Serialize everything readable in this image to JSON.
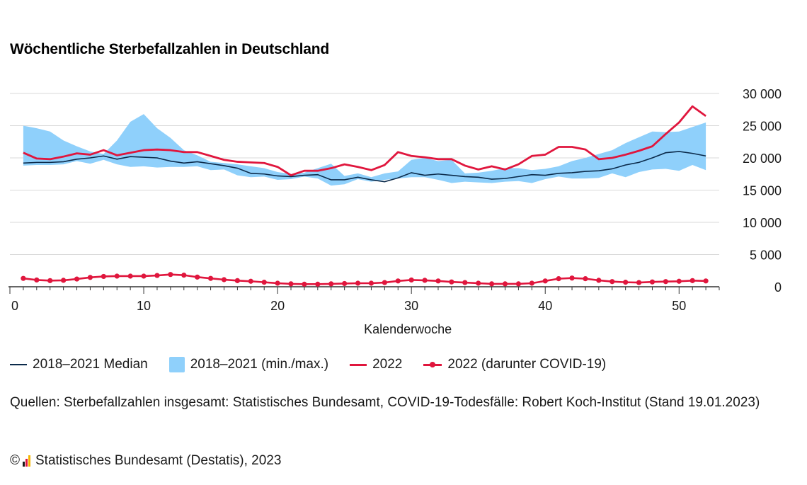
{
  "title": "Wöchentliche Sterbefallzahlen in Deutschland",
  "legend": {
    "median": "2018–2021 Median",
    "range": "2018–2021 (min./max.)",
    "y2022": "2022",
    "covid": "2022 (darunter COVID-19)"
  },
  "source": "Quellen: Sterbefallzahlen insgesamt: Statistisches Bundesamt, COVID-19-Todesfälle: Robert Koch-Institut (Stand 19.01.2023)",
  "copyright": {
    "symbol": "©",
    "text": "Statistisches Bundesamt (Destatis), 2023"
  },
  "colors": {
    "median": "#0b2a4a",
    "range": "#8fd0fb",
    "y2022": "#e0163d",
    "covid": "#e0163d",
    "grid": "#d9d9d9",
    "axis": "#333333"
  },
  "chart_data": {
    "type": "line",
    "xlabel": "Kalenderwoche",
    "ylabel": "",
    "xlim": [
      0,
      53
    ],
    "ylim": [
      0,
      30000
    ],
    "x_ticks": [
      0,
      10,
      20,
      30,
      40,
      50
    ],
    "x_tick_labels": [
      "0",
      "10",
      "20",
      "30",
      "40",
      "50"
    ],
    "y_ticks": [
      0,
      5000,
      10000,
      15000,
      20000,
      25000,
      30000
    ],
    "y_tick_labels": [
      "0",
      "5 000",
      "10 000",
      "15 000",
      "20 000",
      "25 000",
      "30 000"
    ],
    "y_axis_position": "right",
    "grid": true,
    "legend_position": "bottom",
    "x": [
      1,
      2,
      3,
      4,
      5,
      6,
      7,
      8,
      9,
      10,
      11,
      12,
      13,
      14,
      15,
      16,
      17,
      18,
      19,
      20,
      21,
      22,
      23,
      24,
      25,
      26,
      27,
      28,
      29,
      30,
      31,
      32,
      33,
      34,
      35,
      36,
      37,
      38,
      39,
      40,
      41,
      42,
      43,
      44,
      45,
      46,
      47,
      48,
      49,
      50,
      51,
      52
    ],
    "series": [
      {
        "name": "2018–2021 (min./max.)",
        "type": "area-range",
        "max": [
          25000,
          24600,
          24100,
          22700,
          21800,
          21000,
          20600,
          22700,
          25600,
          26800,
          24600,
          23100,
          21200,
          20400,
          19400,
          19200,
          19000,
          18700,
          18400,
          17800,
          17500,
          17700,
          18400,
          19100,
          17200,
          17600,
          17000,
          17600,
          17900,
          19700,
          20000,
          19500,
          19700,
          17600,
          17700,
          18000,
          18400,
          18400,
          18100,
          18300,
          18700,
          19500,
          20000,
          20600,
          21200,
          22300,
          23200,
          24100,
          24000,
          24100,
          24800,
          25500
        ],
        "min": [
          18800,
          18900,
          18900,
          19000,
          19500,
          19100,
          19700,
          19000,
          18600,
          18700,
          18500,
          18600,
          18600,
          18700,
          18100,
          18200,
          17300,
          17000,
          17100,
          16600,
          16700,
          17100,
          16800,
          15700,
          15900,
          16700,
          16300,
          16600,
          16800,
          17000,
          17000,
          16600,
          16100,
          16300,
          16200,
          16100,
          16300,
          16400,
          16100,
          16700,
          17100,
          16800,
          16800,
          16900,
          17600,
          17000,
          17800,
          18200,
          18300,
          18000,
          18900,
          18100
        ]
      },
      {
        "name": "2018–2021 Median",
        "values": [
          19200,
          19300,
          19300,
          19400,
          19800,
          20000,
          20300,
          19800,
          20200,
          20100,
          20000,
          19500,
          19200,
          19400,
          19100,
          18800,
          18400,
          17600,
          17500,
          17200,
          17100,
          17300,
          17400,
          16600,
          16600,
          17000,
          16600,
          16300,
          16900,
          17700,
          17300,
          17500,
          17300,
          17100,
          17000,
          16700,
          16800,
          17100,
          17400,
          17300,
          17600,
          17700,
          17900,
          18000,
          18300,
          18900,
          19300,
          20000,
          20800,
          21000,
          20700,
          20300
        ]
      },
      {
        "name": "2022",
        "values": [
          20800,
          19900,
          19800,
          20200,
          20700,
          20500,
          21200,
          20400,
          20800,
          21200,
          21300,
          21200,
          20900,
          20900,
          20300,
          19700,
          19400,
          19300,
          19200,
          18600,
          17300,
          18000,
          18000,
          18400,
          19000,
          18600,
          18100,
          18900,
          20900,
          20300,
          20100,
          19800,
          19800,
          18800,
          18200,
          18700,
          18200,
          19000,
          20300,
          20500,
          21700,
          21700,
          21300,
          19800,
          20000,
          20500,
          21100,
          21800,
          23700,
          25500,
          28000,
          26500
        ]
      },
      {
        "name": "2022 (darunter COVID-19)",
        "values": [
          1300,
          1050,
          950,
          1000,
          1200,
          1450,
          1600,
          1650,
          1650,
          1650,
          1750,
          1900,
          1800,
          1500,
          1300,
          1100,
          950,
          850,
          700,
          550,
          450,
          400,
          400,
          450,
          500,
          550,
          550,
          650,
          900,
          1050,
          1000,
          900,
          750,
          650,
          550,
          450,
          450,
          450,
          550,
          900,
          1250,
          1350,
          1250,
          1000,
          800,
          700,
          650,
          750,
          800,
          850,
          950,
          900
        ]
      }
    ]
  }
}
